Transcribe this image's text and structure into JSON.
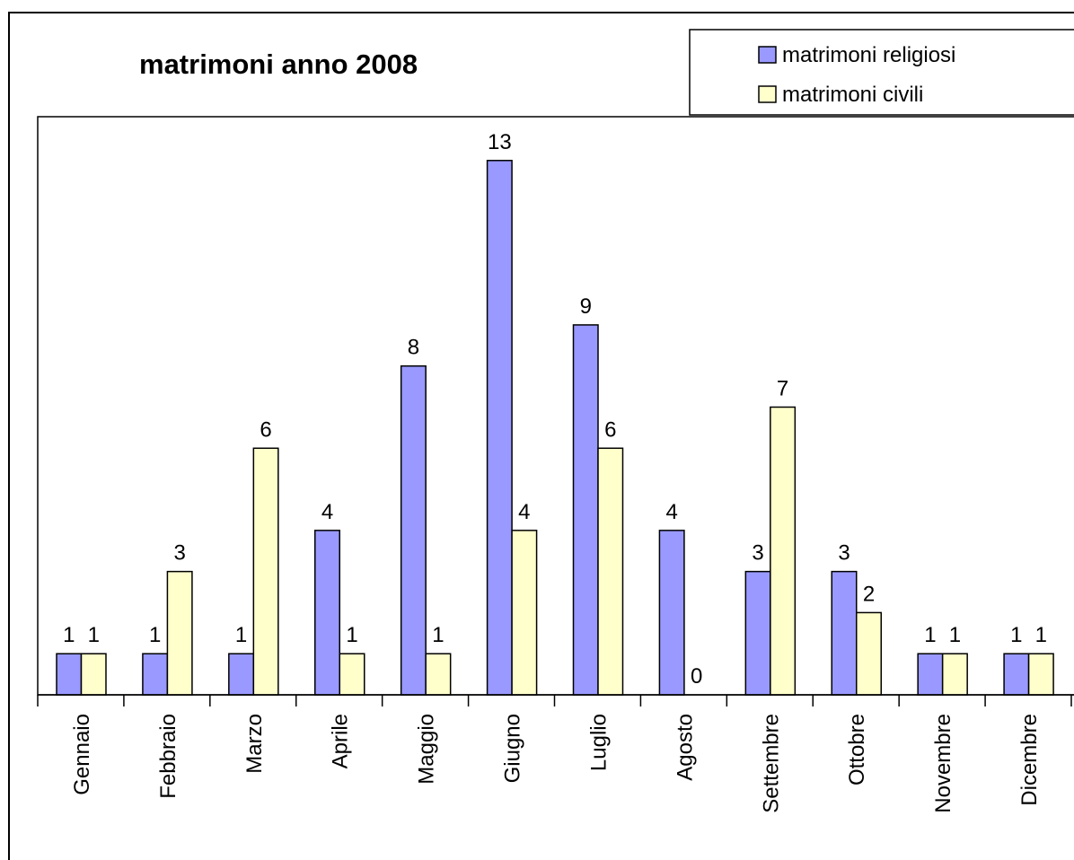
{
  "chart_data": {
    "type": "bar",
    "title": "matrimoni anno 2008",
    "categories": [
      "Gennaio",
      "Febbraio",
      "Marzo",
      "Aprile",
      "Maggio",
      "Giugno",
      "Luglio",
      "Agosto",
      "Settembre",
      "Ottobre",
      "Novembre",
      "Dicembre"
    ],
    "series": [
      {
        "name": "matrimoni religiosi",
        "color": "#9999ff",
        "values": [
          1,
          1,
          1,
          4,
          8,
          13,
          9,
          4,
          3,
          3,
          1,
          1
        ]
      },
      {
        "name": "matrimoni civili",
        "color": "#ffffcc",
        "values": [
          1,
          3,
          6,
          1,
          1,
          4,
          6,
          0,
          7,
          2,
          1,
          1
        ]
      }
    ],
    "ylim": [
      0,
      14
    ],
    "legend": "top-right"
  }
}
